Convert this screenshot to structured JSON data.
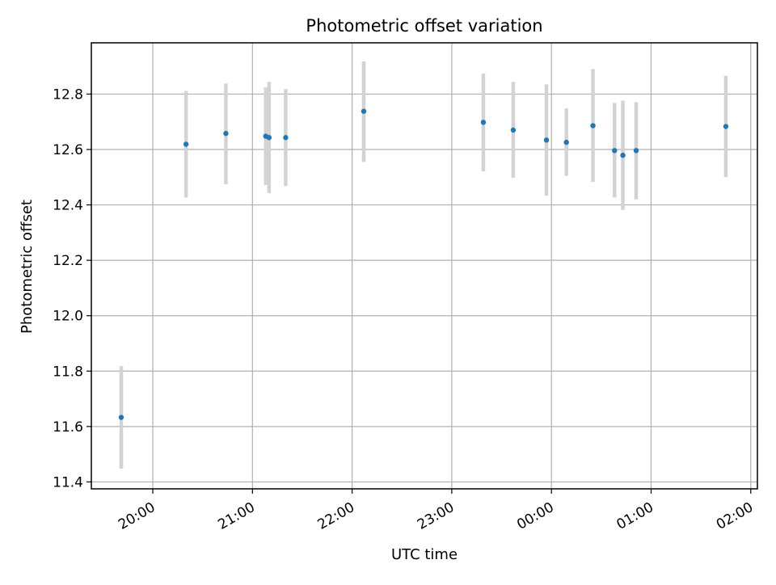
{
  "chart_data": {
    "type": "scatter",
    "title": "Photometric offset variation",
    "xlabel": "UTC time",
    "ylabel": "Photometric offset",
    "xlim": [
      "19:23",
      "02:04"
    ],
    "ylim": [
      11.375,
      12.985
    ],
    "grid": true,
    "x_ticks": [
      "20:00",
      "21:00",
      "22:00",
      "23:00",
      "00:00",
      "01:00",
      "02:00"
    ],
    "y_ticks": [
      11.4,
      11.6,
      11.8,
      12.0,
      12.2,
      12.4,
      12.6,
      12.8
    ],
    "y_tick_labels": [
      "11.4",
      "11.6",
      "11.8",
      "12.0",
      "12.2",
      "12.4",
      "12.6",
      "12.8"
    ],
    "series": [
      {
        "marker": "point",
        "color": "#1f77b4",
        "error_color": "#d3d3d3",
        "points": [
          {
            "x": "19:41",
            "y": 11.633,
            "ylow": 11.448,
            "yhigh": 11.818
          },
          {
            "x": "20:20",
            "y": 12.619,
            "ylow": 12.427,
            "yhigh": 12.811
          },
          {
            "x": "20:44",
            "y": 12.658,
            "ylow": 12.475,
            "yhigh": 12.838
          },
          {
            "x": "21:08",
            "y": 12.648,
            "ylow": 12.472,
            "yhigh": 12.824
          },
          {
            "x": "21:10",
            "y": 12.643,
            "ylow": 12.442,
            "yhigh": 12.844
          },
          {
            "x": "21:20",
            "y": 12.643,
            "ylow": 12.468,
            "yhigh": 12.818
          },
          {
            "x": "22:07",
            "y": 12.738,
            "ylow": 12.555,
            "yhigh": 12.918
          },
          {
            "x": "23:19",
            "y": 12.698,
            "ylow": 12.521,
            "yhigh": 12.874
          },
          {
            "x": "23:37",
            "y": 12.67,
            "ylow": 12.498,
            "yhigh": 12.844
          },
          {
            "x": "23:57",
            "y": 12.634,
            "ylow": 12.433,
            "yhigh": 12.835
          },
          {
            "x": "00:09",
            "y": 12.626,
            "ylow": 12.505,
            "yhigh": 12.748
          },
          {
            "x": "00:25",
            "y": 12.686,
            "ylow": 12.483,
            "yhigh": 12.89
          },
          {
            "x": "00:38",
            "y": 12.596,
            "ylow": 12.427,
            "yhigh": 12.768
          },
          {
            "x": "00:43",
            "y": 12.579,
            "ylow": 12.382,
            "yhigh": 12.776
          },
          {
            "x": "00:51",
            "y": 12.596,
            "ylow": 12.42,
            "yhigh": 12.771
          },
          {
            "x": "01:45",
            "y": 12.683,
            "ylow": 12.5,
            "yhigh": 12.866
          }
        ]
      }
    ]
  }
}
